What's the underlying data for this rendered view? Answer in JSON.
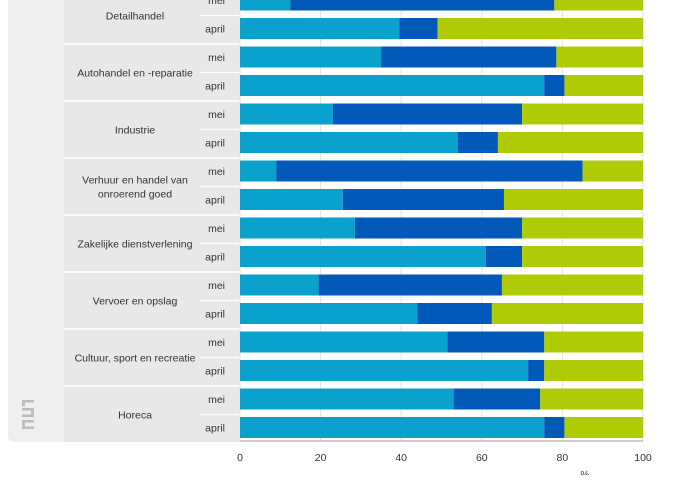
{
  "chart_data": {
    "type": "bar",
    "orientation": "horizontal",
    "stacked": true,
    "xlim": [
      0,
      100
    ],
    "x_ticks": [
      "0",
      "20",
      "40",
      "60",
      "80",
      "100"
    ],
    "xlabel_partial": "%",
    "groups": [
      {
        "label": "Detailhandel",
        "rows": [
          {
            "label": "mei",
            "values": [
              12.5,
              65.5,
              22.0
            ]
          },
          {
            "label": "april",
            "values": [
              39.5,
              9.5,
              51.0
            ]
          }
        ]
      },
      {
        "label": "Autohandel en -reparatie",
        "rows": [
          {
            "label": "mei",
            "values": [
              35.0,
              43.5,
              21.5
            ]
          },
          {
            "label": "april",
            "values": [
              75.5,
              5.0,
              19.5
            ]
          }
        ]
      },
      {
        "label": "Industrie",
        "rows": [
          {
            "label": "mei",
            "values": [
              23.0,
              47.0,
              30.0
            ]
          },
          {
            "label": "april",
            "values": [
              54.0,
              10.0,
              36.0
            ]
          }
        ]
      },
      {
        "label": "Verhuur en handel van onroerend goed",
        "rows": [
          {
            "label": "mei",
            "values": [
              9.0,
              76.0,
              15.0
            ]
          },
          {
            "label": "april",
            "values": [
              25.5,
              40.0,
              34.5
            ]
          }
        ]
      },
      {
        "label": "Zakelijke dienstverlening",
        "rows": [
          {
            "label": "mei",
            "values": [
              28.5,
              41.5,
              30.0
            ]
          },
          {
            "label": "april",
            "values": [
              61.0,
              9.0,
              30.0
            ]
          }
        ]
      },
      {
        "label": "Vervoer en opslag",
        "rows": [
          {
            "label": "mei",
            "values": [
              19.5,
              45.5,
              35.0
            ]
          },
          {
            "label": "april",
            "values": [
              44.0,
              18.5,
              37.5
            ]
          }
        ]
      },
      {
        "label": "Cultuur, sport en recreatie",
        "rows": [
          {
            "label": "mei",
            "values": [
              51.5,
              24.0,
              24.5
            ]
          },
          {
            "label": "april",
            "values": [
              71.5,
              4.0,
              24.5
            ]
          }
        ]
      },
      {
        "label": "Horeca",
        "rows": [
          {
            "label": "mei",
            "values": [
              53.0,
              21.5,
              25.5
            ]
          },
          {
            "label": "april",
            "values": [
              75.5,
              5.0,
              19.5
            ]
          }
        ]
      }
    ],
    "colors": [
      "#0aa1cc",
      "#0058b8",
      "#afcb05"
    ],
    "grid": true,
    "legend": "none",
    "logo": "cbs"
  }
}
